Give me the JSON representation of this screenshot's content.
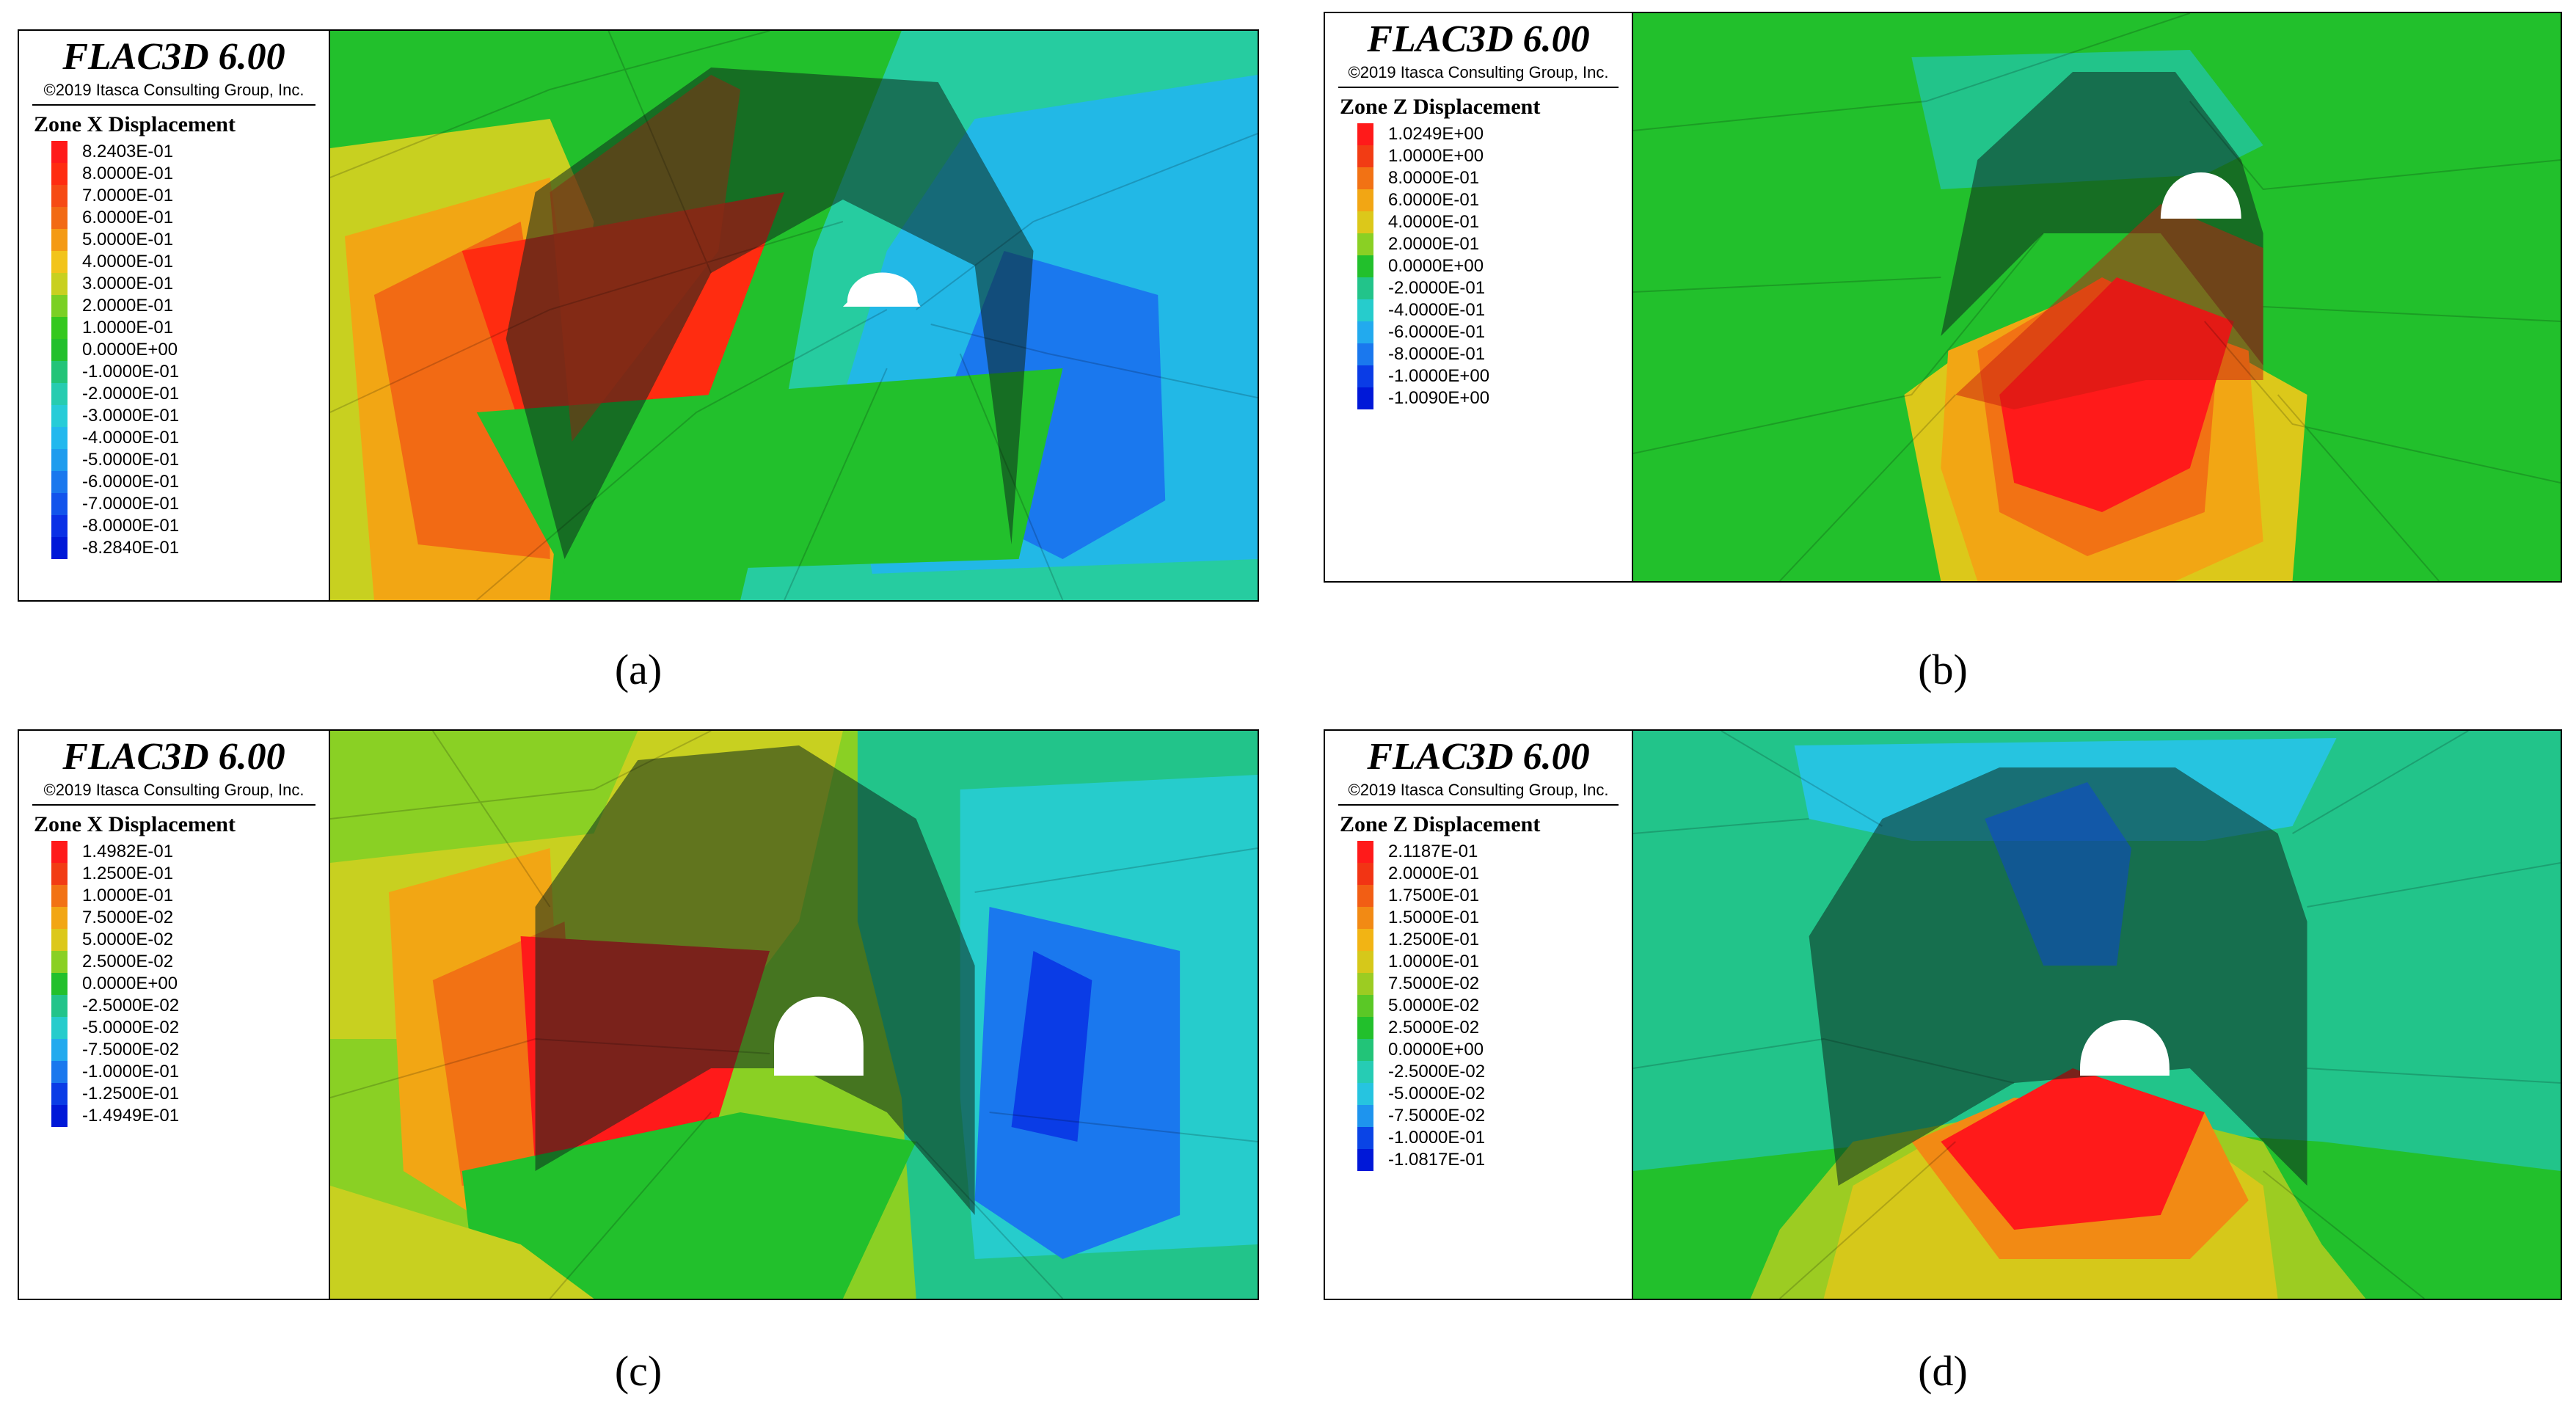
{
  "panels": [
    {
      "id": "a",
      "title": "FLAC3D 6.00",
      "copyright": "©2019 Itasca Consulting Group, Inc.",
      "quantity": "Zone X Displacement",
      "caption": "(a)",
      "levels": [
        "8.2403E-01",
        "8.0000E-01",
        "7.0000E-01",
        "6.0000E-01",
        "5.0000E-01",
        "4.0000E-01",
        "3.0000E-01",
        "2.0000E-01",
        "1.0000E-01",
        "0.0000E+00",
        "-1.0000E-01",
        "-2.0000E-01",
        "-3.0000E-01",
        "-4.0000E-01",
        "-5.0000E-01",
        "-6.0000E-01",
        "-7.0000E-01",
        "-8.0000E-01",
        "-8.2840E-01"
      ],
      "colors": [
        "#ff1a1a",
        "#ff2c10",
        "#f64a14",
        "#f26a14",
        "#f49a14",
        "#f2c41a",
        "#c8d020",
        "#7ad024",
        "#34c81e",
        "#22c02c",
        "#22c478",
        "#26ccb0",
        "#26ccd8",
        "#22b8ee",
        "#1e9cee",
        "#1a78ee",
        "#1254ec",
        "#0a30e6",
        "#0018d8"
      ]
    },
    {
      "id": "b",
      "title": "FLAC3D 6.00",
      "copyright": "©2019 Itasca Consulting Group, Inc.",
      "quantity": "Zone Z Displacement",
      "caption": "(b)",
      "levels": [
        "1.0249E+00",
        "1.0000E+00",
        "8.0000E-01",
        "6.0000E-01",
        "4.0000E-01",
        "2.0000E-01",
        "0.0000E+00",
        "-2.0000E-01",
        "-4.0000E-01",
        "-6.0000E-01",
        "-8.0000E-01",
        "-1.0000E+00",
        "-1.0090E+00"
      ],
      "colors": [
        "#ff1a1a",
        "#f23c14",
        "#f27214",
        "#f2a614",
        "#dcc81a",
        "#8ad024",
        "#22c02c",
        "#22c48a",
        "#26cccc",
        "#22aaee",
        "#1a78ee",
        "#0a3ce6",
        "#0018d8"
      ]
    },
    {
      "id": "c",
      "title": "FLAC3D 6.00",
      "copyright": "©2019 Itasca Consulting Group, Inc.",
      "quantity": "Zone X Displacement",
      "caption": "(c)",
      "levels": [
        "1.4982E-01",
        "1.2500E-01",
        "1.0000E-01",
        "7.5000E-02",
        "5.0000E-02",
        "2.5000E-02",
        "0.0000E+00",
        "-2.5000E-02",
        "-5.0000E-02",
        "-7.5000E-02",
        "-1.0000E-01",
        "-1.2500E-01",
        "-1.4949E-01"
      ],
      "colors": [
        "#ff1a1a",
        "#f23c14",
        "#f27214",
        "#f2a614",
        "#dcc81a",
        "#8ad024",
        "#22c02c",
        "#22c48a",
        "#26cccc",
        "#22aaee",
        "#1a78ee",
        "#0a3ce6",
        "#0018d8"
      ]
    },
    {
      "id": "d",
      "title": "FLAC3D 6.00",
      "copyright": "©2019 Itasca Consulting Group, Inc.",
      "quantity": "Zone Z Displacement",
      "caption": "(d)",
      "levels": [
        "2.1187E-01",
        "2.0000E-01",
        "1.7500E-01",
        "1.5000E-01",
        "1.2500E-01",
        "1.0000E-01",
        "7.5000E-02",
        "5.0000E-02",
        "2.5000E-02",
        "0.0000E+00",
        "-2.5000E-02",
        "-5.0000E-02",
        "-7.5000E-02",
        "-1.0000E-01",
        "-1.0817E-01"
      ],
      "colors": [
        "#ff1a1a",
        "#f23414",
        "#f25e14",
        "#f28a14",
        "#f2b414",
        "#d6c81a",
        "#9ccc22",
        "#5ac826",
        "#22c02c",
        "#22c478",
        "#26ccb4",
        "#26c4e0",
        "#1e94ee",
        "#0a44e6",
        "#0018d8"
      ]
    }
  ]
}
